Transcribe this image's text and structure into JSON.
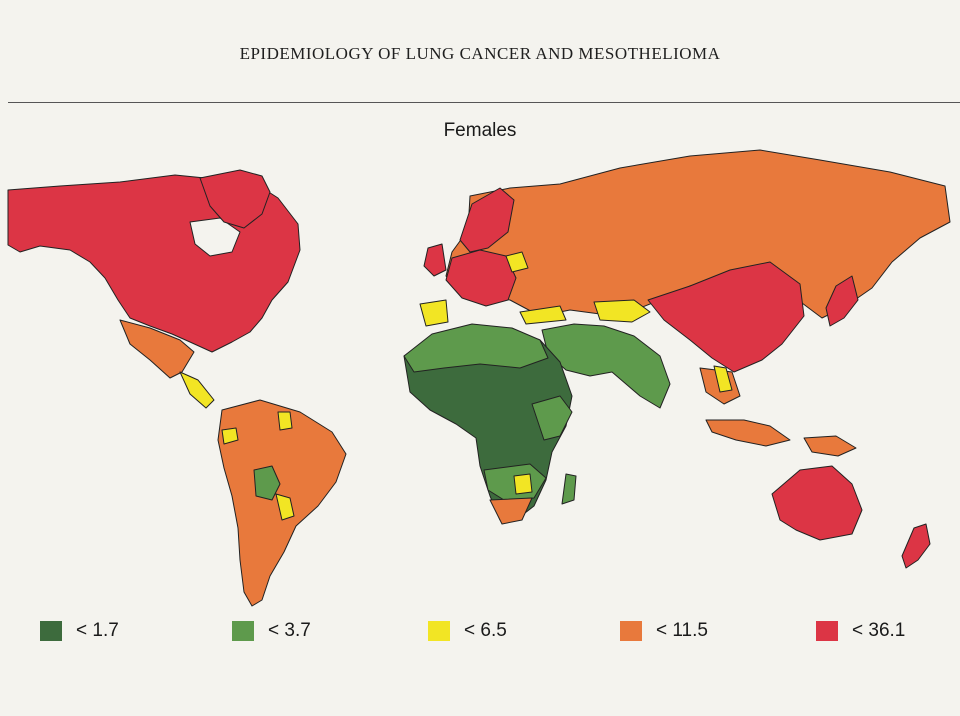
{
  "running_header": "EPIDEMIOLOGY OF LUNG CANCER AND MESOTHELIOMA",
  "map_title": "Females",
  "colors": {
    "c1": "#3d6b3d",
    "c2": "#5e9a4c",
    "c3": "#f2e524",
    "c4": "#e8793c",
    "c5": "#dc3545",
    "ocean": "#f4f3ee",
    "outline": "#222222"
  },
  "legend": [
    {
      "label": "< 1.7",
      "color": "#3d6b3d"
    },
    {
      "label": "< 3.7",
      "color": "#5e9a4c"
    },
    {
      "label": "< 6.5",
      "color": "#f2e524"
    },
    {
      "label": "< 11.5",
      "color": "#e8793c"
    },
    {
      "label": "< 36.1",
      "color": "#dc3545"
    }
  ]
}
